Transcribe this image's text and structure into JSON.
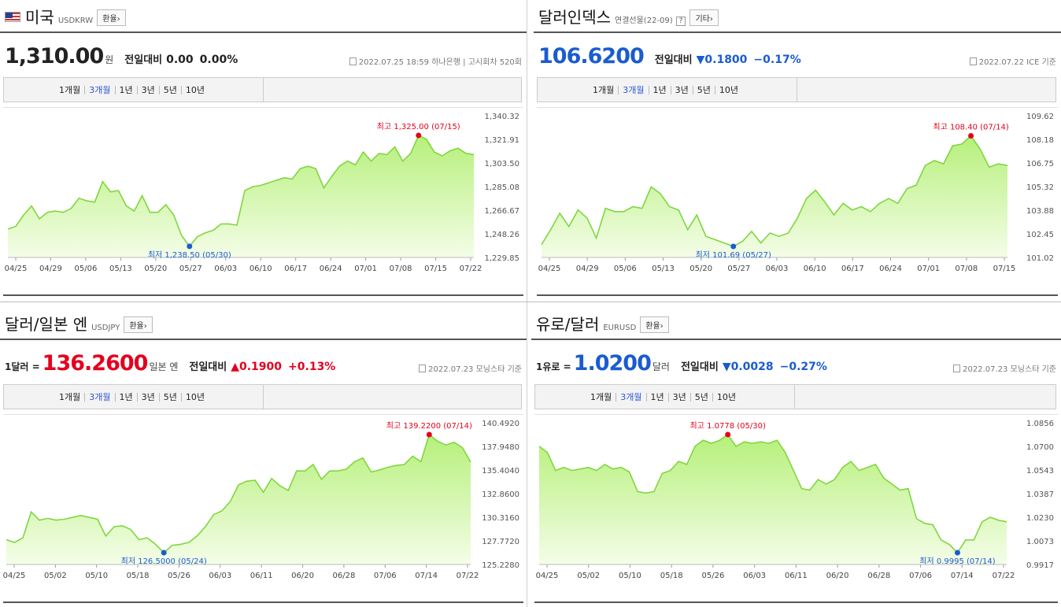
{
  "colors": {
    "up": "#e4001e",
    "down": "#1a5ccf",
    "flat": "#222222",
    "line": "#7fd73f",
    "fill_top": "#b6f07a",
    "fill_bottom": "#f4fde8",
    "max_dot": "#e4001e",
    "min_dot": "#1a5ccf"
  },
  "panels": [
    {
      "id": "usdkrw",
      "flag": "us-flag-icon",
      "name": "미국",
      "code": "USDKRW",
      "chip": "환율›",
      "help": "",
      "price_prefix": "",
      "price": "1,310.00",
      "price_unit": "원",
      "price_color": "#222222",
      "change_label": "전일대비",
      "change_arrow": "",
      "change": "0.00",
      "change_pct": "0.00%",
      "change_color": "#222222",
      "date": "2022.07.25 18:59",
      "source": "하나은행 | 고시회차 520회",
      "tabs": [
        {
          "label": "1개월"
        },
        {
          "label": "3개월",
          "active": true
        },
        {
          "label": "1년"
        },
        {
          "label": "3년"
        },
        {
          "label": "5년"
        },
        {
          "label": "10년"
        }
      ],
      "chart_data": {
        "type": "area",
        "x_ticks": [
          "04/25",
          "04/29",
          "05/06",
          "05/13",
          "05/20",
          "05/27",
          "06/03",
          "06/10",
          "06/17",
          "06/24",
          "07/01",
          "07/08",
          "07/15",
          "07/22"
        ],
        "y_ticks": [
          "1,340.32",
          "1,321.91",
          "1,303.50",
          "1,285.08",
          "1,266.67",
          "1,248.26",
          "1,229.85"
        ],
        "ylim": [
          1229.85,
          1340.32
        ],
        "values": [
          1252,
          1254,
          1263,
          1270,
          1260,
          1265,
          1266,
          1265,
          1268,
          1276,
          1274,
          1273,
          1289,
          1281,
          1282,
          1270,
          1266,
          1278,
          1265,
          1265,
          1271,
          1263,
          1247,
          1238.5,
          1246,
          1249,
          1251,
          1256,
          1256,
          1255,
          1282,
          1285,
          1286,
          1288,
          1290,
          1292,
          1291,
          1299,
          1301,
          1299,
          1284,
          1293,
          1301,
          1305,
          1302,
          1312,
          1305,
          1311,
          1310,
          1316,
          1305,
          1311,
          1325,
          1322,
          1312,
          1309,
          1313,
          1315,
          1311,
          1310
        ],
        "max_label": "최고 1,325.00 (07/15)",
        "max_index": 52,
        "min_label": "최저 1,238.50 (05/30)",
        "min_index": 23
      }
    },
    {
      "id": "dxy",
      "flag": "",
      "name": "달러인덱스",
      "code": "연결선물(22-09)",
      "chip": "기타›",
      "help": "?",
      "price_prefix": "",
      "price": "106.6200",
      "price_unit": "",
      "price_color": "#1a5ccf",
      "change_label": "전일대비",
      "change_arrow": "▼",
      "change": "0.1800",
      "change_pct": "−0.17%",
      "change_color": "#1a5ccf",
      "date": "2022.07.22",
      "source": "ICE 기준",
      "tabs": [
        {
          "label": "1개월"
        },
        {
          "label": "3개월",
          "active": true
        },
        {
          "label": "1년"
        },
        {
          "label": "3년"
        },
        {
          "label": "5년"
        },
        {
          "label": "10년"
        }
      ],
      "chart_data": {
        "type": "area",
        "x_ticks": [
          "04/25",
          "04/29",
          "05/06",
          "05/13",
          "05/20",
          "05/27",
          "06/03",
          "06/10",
          "06/17",
          "06/24",
          "07/01",
          "07/08",
          "07/15"
        ],
        "y_ticks": [
          "109.62",
          "108.18",
          "106.75",
          "105.32",
          "103.88",
          "102.45",
          "101.02"
        ],
        "ylim": [
          101.02,
          109.62
        ],
        "values": [
          101.8,
          102.7,
          103.7,
          102.9,
          103.9,
          103.4,
          102.2,
          104.0,
          103.8,
          103.8,
          104.1,
          104.0,
          105.3,
          104.9,
          104.1,
          103.9,
          102.7,
          103.6,
          102.3,
          102.1,
          101.9,
          101.69,
          102.0,
          102.6,
          101.9,
          102.5,
          102.3,
          102.5,
          103.4,
          104.6,
          105.1,
          104.4,
          103.6,
          104.3,
          103.9,
          104.1,
          103.8,
          104.3,
          104.6,
          104.3,
          105.2,
          105.4,
          106.6,
          106.9,
          106.7,
          107.8,
          107.9,
          108.4,
          107.6,
          106.5,
          106.7,
          106.6
        ],
        "max_label": "최고 108.40 (07/14)",
        "max_index": 47,
        "min_label": "최저 101.69 (05/27)",
        "min_index": 21
      }
    },
    {
      "id": "usdjpy",
      "flag": "",
      "name": "달러/일본 엔",
      "code": "USDJPY",
      "chip": "환율›",
      "help": "",
      "price_prefix": "1달러 =",
      "price": "136.2600",
      "price_unit": "일본 엔",
      "price_color": "#e4001e",
      "change_label": "전일대비",
      "change_arrow": "▲",
      "change": "0.1900",
      "change_pct": "+0.13%",
      "change_color": "#e4001e",
      "date": "2022.07.23",
      "source": "모닝스타 기준",
      "tabs": [
        {
          "label": "1개월"
        },
        {
          "label": "3개월",
          "active": true
        },
        {
          "label": "1년"
        },
        {
          "label": "3년"
        },
        {
          "label": "5년"
        },
        {
          "label": "10년"
        }
      ],
      "chart_data": {
        "type": "area",
        "x_ticks": [
          "04/25",
          "05/02",
          "05/10",
          "05/18",
          "05/26",
          "06/03",
          "06/11",
          "06/20",
          "06/28",
          "07/06",
          "07/14",
          "07/22"
        ],
        "y_ticks": [
          "140.4920",
          "137.9480",
          "135.4040",
          "132.8600",
          "130.3160",
          "127.7720",
          "125.2280"
        ],
        "ylim": [
          125.228,
          140.492
        ],
        "values": [
          127.9,
          127.6,
          128.1,
          130.9,
          130.0,
          130.2,
          130.0,
          130.1,
          130.3,
          130.5,
          130.3,
          130.1,
          128.3,
          129.3,
          129.4,
          129.0,
          127.9,
          128.1,
          127.4,
          126.5,
          127.3,
          127.4,
          127.6,
          128.3,
          129.3,
          130.6,
          131.0,
          132.0,
          133.8,
          134.2,
          134.3,
          133.0,
          134.5,
          133.7,
          133.2,
          135.3,
          135.3,
          136.0,
          134.4,
          135.3,
          135.3,
          135.5,
          136.3,
          136.7,
          135.2,
          135.4,
          135.7,
          135.9,
          136.0,
          136.9,
          136.3,
          139.22,
          138.5,
          138.1,
          138.4,
          137.8,
          136.26
        ],
        "max_label": "최고 139.2200 (07/14)",
        "max_index": 51,
        "min_label": "최저 126.5000 (05/24)",
        "min_index": 19
      }
    },
    {
      "id": "eurusd",
      "flag": "",
      "name": "유로/달러",
      "code": "EURUSD",
      "chip": "환율›",
      "help": "",
      "price_prefix": "1유로 =",
      "price": "1.0200",
      "price_unit": "달러",
      "price_color": "#1a5ccf",
      "change_label": "전일대비",
      "change_arrow": "▼",
      "change": "0.0028",
      "change_pct": "−0.27%",
      "change_color": "#1a5ccf",
      "date": "2022.07.23",
      "source": "모닝스타 기준",
      "tabs": [
        {
          "label": "1개월"
        },
        {
          "label": "3개월",
          "active": true
        },
        {
          "label": "1년"
        },
        {
          "label": "3년"
        },
        {
          "label": "5년"
        },
        {
          "label": "10년"
        }
      ],
      "chart_data": {
        "type": "area",
        "x_ticks": [
          "04/25",
          "05/02",
          "05/10",
          "05/18",
          "05/26",
          "06/03",
          "06/11",
          "06/20",
          "06/28",
          "07/06",
          "07/14",
          "07/22"
        ],
        "y_ticks": [
          "1.0856",
          "1.0700",
          "1.0543",
          "1.0387",
          "1.0230",
          "1.0073",
          "0.9917"
        ],
        "ylim": [
          0.9917,
          1.0856
        ],
        "values": [
          1.07,
          1.066,
          1.054,
          1.056,
          1.054,
          1.055,
          1.056,
          1.054,
          1.058,
          1.055,
          1.056,
          1.053,
          1.04,
          1.039,
          1.04,
          1.052,
          1.054,
          1.06,
          1.058,
          1.07,
          1.074,
          1.072,
          1.074,
          1.0778,
          1.07,
          1.073,
          1.072,
          1.073,
          1.072,
          1.074,
          1.066,
          1.054,
          1.042,
          1.041,
          1.048,
          1.045,
          1.048,
          1.056,
          1.06,
          1.054,
          1.056,
          1.058,
          1.049,
          1.045,
          1.041,
          1.042,
          1.022,
          1.019,
          1.018,
          1.008,
          1.005,
          0.9995,
          1.008,
          1.008,
          1.02,
          1.023,
          1.021,
          1.02
        ],
        "max_label": "최고 1.0778 (05/30)",
        "max_index": 23,
        "min_label": "최저 0.9995 (07/14)",
        "min_index": 51
      }
    }
  ]
}
